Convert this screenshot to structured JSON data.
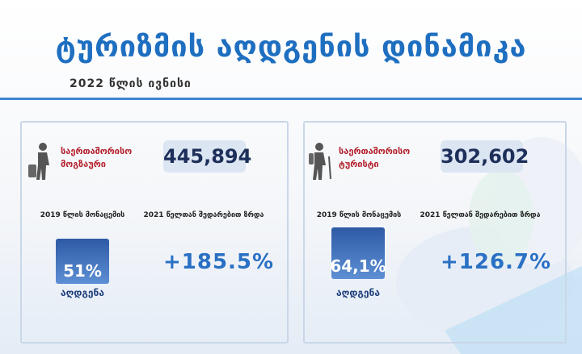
{
  "header": {
    "title": "ტურიზმის აღდგენის დინამიკა",
    "subtitle": "2022 წლის ივნისი"
  },
  "panels": [
    {
      "label": "საერთაშორისო მოგზაური",
      "count": "445,894",
      "recovery_caption": "2019 წლის მონაცემის",
      "recovery": "51%",
      "recovery_label": "აღდგენა",
      "growth_caption": "2021 წელთან შედარებით ზრდა",
      "growth": "+185.5%"
    },
    {
      "label": "საერთაშორისო ტურისტი",
      "count": "302,602",
      "recovery_caption": "2019 წლის მონაცემის",
      "recovery": "64,1%",
      "recovery_label": "აღდგენა",
      "growth_caption": "2021 წელთან შედარებით ზრდა",
      "growth": "+126.7%"
    }
  ]
}
